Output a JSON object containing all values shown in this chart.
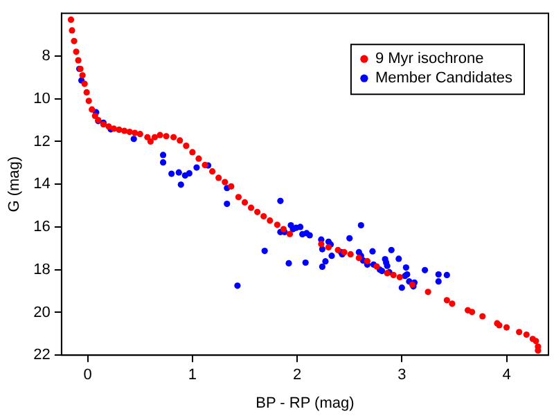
{
  "chart_data": {
    "type": "scatter",
    "xlabel": "BP - RP (mag)",
    "ylabel": "G (mag)",
    "xlim": [
      -0.25,
      4.4
    ],
    "ylim": [
      22,
      6
    ],
    "xticks": [
      0,
      1,
      2,
      3,
      4
    ],
    "yticks": [
      8,
      10,
      12,
      14,
      16,
      18,
      20,
      22
    ],
    "grid": false,
    "legend": "top right",
    "marker": "circle",
    "series": [
      {
        "name": "9 Myr isochrone",
        "color": "#ff0000",
        "x": [
          -0.16,
          -0.15,
          -0.13,
          -0.11,
          -0.09,
          -0.07,
          -0.05,
          -0.03,
          -0.01,
          0.01,
          0.04,
          0.07,
          0.1,
          0.15,
          0.2,
          0.25,
          0.3,
          0.35,
          0.4,
          0.45,
          0.5,
          0.57,
          0.6,
          0.64,
          0.69,
          0.75,
          0.82,
          0.88,
          0.94,
          1.0,
          1.06,
          1.12,
          1.19,
          1.25,
          1.31,
          1.37,
          1.44,
          1.5,
          1.56,
          1.62,
          1.68,
          1.74,
          1.81,
          1.87,
          1.93,
          2.23,
          2.3,
          2.39,
          2.45,
          2.51,
          2.59,
          2.67,
          2.76,
          2.86,
          2.92,
          2.98,
          3.1,
          3.25,
          3.43,
          3.48,
          3.63,
          3.67,
          3.77,
          3.91,
          3.93,
          4.0,
          4.12,
          4.19,
          4.25,
          4.28,
          4.3,
          4.3
        ],
        "values": [
          6.3,
          6.8,
          7.3,
          7.8,
          8.2,
          8.6,
          8.9,
          9.3,
          9.7,
          10.1,
          10.5,
          10.8,
          11.0,
          11.2,
          11.3,
          11.4,
          11.45,
          11.5,
          11.55,
          11.6,
          11.65,
          11.8,
          12.0,
          11.8,
          11.7,
          11.75,
          11.8,
          11.95,
          12.2,
          12.5,
          12.8,
          13.1,
          13.4,
          13.7,
          13.9,
          14.1,
          14.6,
          14.85,
          15.1,
          15.3,
          15.5,
          15.7,
          15.9,
          16.1,
          16.33,
          16.8,
          16.95,
          17.08,
          17.18,
          17.28,
          17.45,
          17.6,
          17.85,
          18.16,
          18.25,
          18.35,
          18.7,
          19.04,
          19.43,
          19.59,
          19.9,
          19.98,
          20.18,
          20.51,
          20.6,
          20.7,
          20.92,
          21.04,
          21.24,
          21.34,
          21.6,
          21.78
        ]
      },
      {
        "name": "Member Candidates",
        "color": "#0000ff",
        "x": [
          -0.08,
          -0.06,
          0.08,
          0.1,
          0.15,
          0.22,
          0.44,
          0.72,
          0.72,
          0.8,
          0.87,
          0.89,
          0.93,
          0.97,
          1.04,
          1.15,
          1.33,
          1.33,
          1.84,
          1.94,
          1.96,
          1.99,
          2.03,
          1.84,
          1.88,
          2.05,
          2.09,
          2.12,
          1.69,
          1.92,
          2.08,
          1.43,
          2.23,
          2.24,
          2.24,
          2.27,
          2.3,
          2.32,
          2.33,
          2.5,
          2.61,
          2.42,
          2.43,
          2.59,
          2.61,
          2.63,
          2.67,
          2.72,
          2.73,
          2.79,
          2.81,
          2.84,
          2.85,
          2.86,
          2.88,
          2.9,
          2.97,
          3.04,
          3.03,
          3.05,
          3.07,
          3.0,
          3.11,
          3.12,
          3.22,
          3.35,
          3.35,
          3.43
        ],
        "values": [
          8.6,
          9.14,
          10.63,
          11.04,
          11.12,
          11.43,
          11.88,
          12.63,
          12.98,
          13.51,
          13.45,
          14.02,
          13.59,
          13.49,
          13.22,
          13.12,
          14.18,
          14.92,
          14.78,
          15.92,
          16.1,
          16.04,
          16.0,
          16.24,
          16.24,
          16.34,
          16.29,
          16.39,
          17.12,
          17.7,
          17.67,
          18.75,
          16.59,
          17.04,
          17.86,
          17.61,
          16.69,
          16.82,
          17.35,
          16.53,
          15.92,
          17.18,
          17.28,
          17.18,
          17.35,
          17.57,
          17.76,
          17.14,
          17.76,
          18.0,
          18.06,
          17.51,
          17.67,
          17.82,
          18.12,
          17.08,
          17.49,
          17.9,
          18.29,
          18.22,
          18.55,
          18.84,
          18.78,
          18.6,
          18.02,
          18.22,
          18.55,
          18.25
        ]
      }
    ]
  }
}
